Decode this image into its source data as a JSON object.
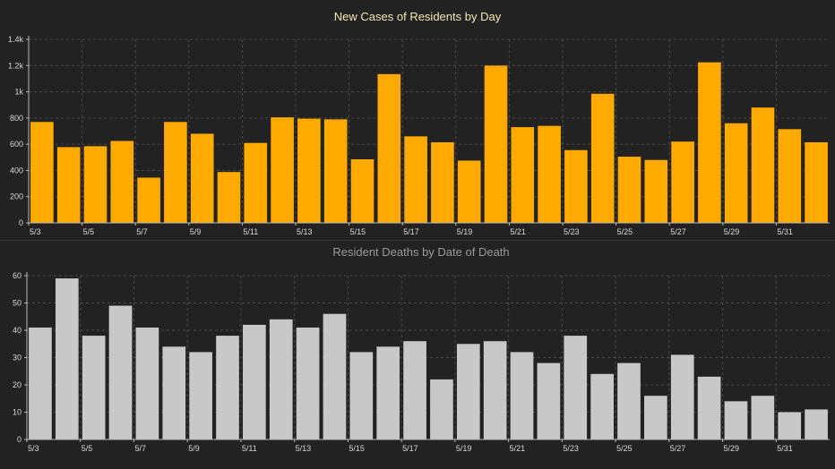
{
  "colors": {
    "background": "#222222",
    "cases_bar": "#FFAA00",
    "deaths_bar": "#C8C8C8",
    "cases_title": "#F3E7B3",
    "deaths_title": "#9A9A9A",
    "tick_label": "#D8D8D8",
    "axis": "#BBBBBB",
    "grid": "#4A4A4A"
  },
  "chart_data": [
    {
      "type": "bar",
      "title": "New Cases of Residents by Day",
      "xlabel": "",
      "ylabel": "",
      "categories": [
        "5/3",
        "5/4",
        "5/5",
        "5/6",
        "5/7",
        "5/8",
        "5/9",
        "5/10",
        "5/11",
        "5/12",
        "5/13",
        "5/14",
        "5/15",
        "5/16",
        "5/17",
        "5/18",
        "5/19",
        "5/20",
        "5/21",
        "5/22",
        "5/23",
        "5/24",
        "5/25",
        "5/26",
        "5/27",
        "5/28",
        "5/29",
        "5/30",
        "5/31",
        "6/1"
      ],
      "values": [
        770,
        578,
        585,
        625,
        345,
        770,
        680,
        388,
        610,
        805,
        795,
        790,
        485,
        1135,
        660,
        615,
        475,
        1200,
        730,
        740,
        555,
        985,
        505,
        480,
        620,
        1225,
        760,
        880,
        715,
        615
      ],
      "ylim": [
        0,
        1400
      ],
      "yticks": [
        0,
        200,
        400,
        600,
        800,
        1000,
        1200,
        1400
      ],
      "ytick_labels": [
        "0",
        "200",
        "400",
        "600",
        "800",
        "1k",
        "1.2k",
        "1.4k"
      ],
      "xtick_labels": [
        "5/3",
        "",
        "5/5",
        "",
        "5/7",
        "",
        "5/9",
        "",
        "5/11",
        "",
        "5/13",
        "",
        "5/15",
        "",
        "5/17",
        "",
        "5/19",
        "",
        "5/21",
        "",
        "5/23",
        "",
        "5/25",
        "",
        "5/27",
        "",
        "5/29",
        "",
        "5/31",
        ""
      ],
      "grid": true,
      "legend": "none"
    },
    {
      "type": "bar",
      "title": "Resident Deaths by Date of Death",
      "xlabel": "",
      "ylabel": "",
      "categories": [
        "5/3",
        "5/4",
        "5/5",
        "5/6",
        "5/7",
        "5/8",
        "5/9",
        "5/10",
        "5/11",
        "5/12",
        "5/13",
        "5/14",
        "5/15",
        "5/16",
        "5/17",
        "5/18",
        "5/19",
        "5/20",
        "5/21",
        "5/22",
        "5/23",
        "5/24",
        "5/25",
        "5/26",
        "5/27",
        "5/28",
        "5/29",
        "5/30",
        "5/31",
        "6/1"
      ],
      "values": [
        41,
        59,
        38,
        49,
        41,
        34,
        32,
        38,
        42,
        44,
        41,
        46,
        32,
        34,
        36,
        22,
        35,
        36,
        32,
        28,
        38,
        24,
        28,
        16,
        31,
        23,
        14,
        16,
        10,
        11
      ],
      "ylim": [
        0,
        60
      ],
      "yticks": [
        0,
        10,
        20,
        30,
        40,
        50,
        60
      ],
      "ytick_labels": [
        "0",
        "10",
        "20",
        "30",
        "40",
        "50",
        "60"
      ],
      "xtick_labels": [
        "5/3",
        "",
        "5/5",
        "",
        "5/7",
        "",
        "5/9",
        "",
        "5/11",
        "",
        "5/13",
        "",
        "5/15",
        "",
        "5/17",
        "",
        "5/19",
        "",
        "5/21",
        "",
        "5/23",
        "",
        "5/25",
        "",
        "5/27",
        "",
        "5/29",
        "",
        "5/31",
        ""
      ],
      "grid": true,
      "legend": "none"
    }
  ]
}
